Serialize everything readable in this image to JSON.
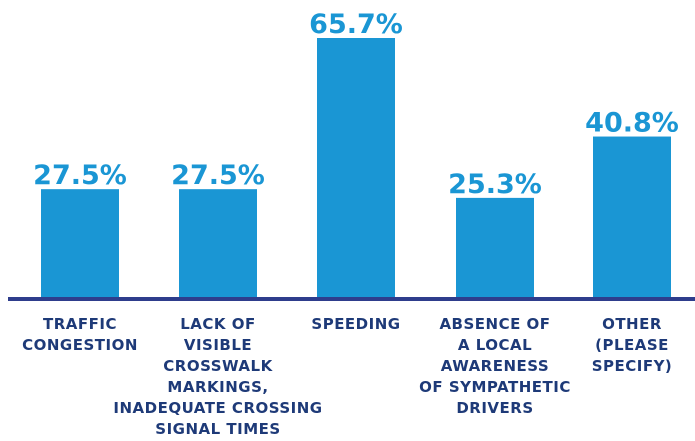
{
  "chart_data": {
    "type": "bar",
    "title": "",
    "xlabel": "",
    "ylabel": "",
    "ylim": [
      0,
      65.7
    ],
    "grid": false,
    "legend": "none",
    "categories": [
      [
        "TRAFFIC",
        "CONGESTION"
      ],
      [
        "LACK OF",
        "VISIBLE",
        "CROSSWALK",
        "MARKINGS,",
        "INADEQUATE CROSSING",
        "SIGNAL TIMES"
      ],
      [
        "SPEEDING"
      ],
      [
        "ABSENCE OF",
        "A LOCAL",
        "AWARENESS",
        "OF SYMPATHETIC",
        "DRIVERS"
      ],
      [
        "OTHER",
        "(PLEASE",
        "SPECIFY)"
      ]
    ],
    "values": [
      27.5,
      27.5,
      65.7,
      25.3,
      40.8
    ],
    "value_labels": [
      "27.5%",
      "27.5%",
      "65.7%",
      "25.3%",
      "40.8%"
    ],
    "colors": {
      "bar": "#1a96d4",
      "value_label": "#1a96d4",
      "axis": "#2e3d8c",
      "category_label": "#1e3a78"
    }
  }
}
